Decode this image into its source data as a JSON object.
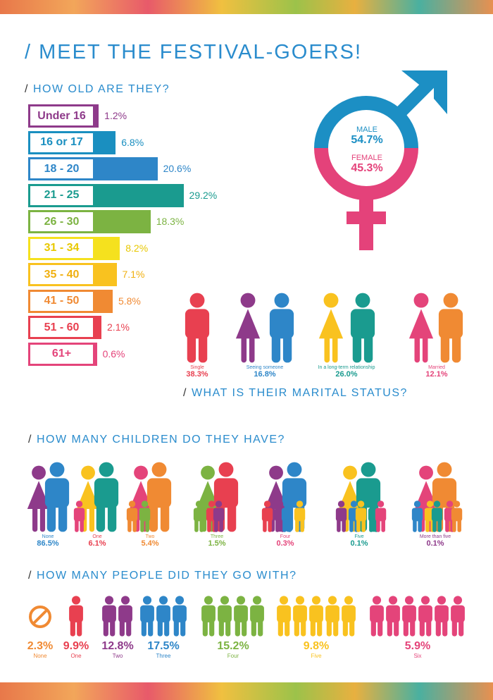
{
  "title": "/ MEET THE FESTIVAL-GOERS!",
  "sections": {
    "age": "HOW OLD ARE THEY?",
    "marital": "WHAT IS THEIR MARITAL STATUS?",
    "children": "HOW MANY CHILDREN DO THEY HAVE?",
    "companions": "HOW MANY PEOPLE DID THEY GO WITH?"
  },
  "slash": "/",
  "gender": {
    "male_label": "MALE",
    "male_value": "54.7%",
    "female_label": "FEMALE",
    "female_value": "45.3%",
    "male_color": "#1c8fc4",
    "female_color": "#e4427a"
  },
  "chart_data": {
    "type": "bar",
    "title": "HOW OLD ARE THEY?",
    "categories": [
      "Under 16",
      "16 or 17",
      "18 - 20",
      "21 - 25",
      "26 - 30",
      "31 - 34",
      "35 - 40",
      "41 - 50",
      "51 - 60",
      "61+"
    ],
    "values": [
      1.2,
      6.8,
      20.6,
      29.2,
      18.3,
      8.2,
      7.1,
      5.8,
      2.1,
      0.6
    ],
    "labels": [
      "1.2%",
      "6.8%",
      "20.6%",
      "29.2%",
      "18.3%",
      "8.2%",
      "7.1%",
      "5.8%",
      "2.1%",
      "0.6%"
    ],
    "colors": [
      "#8e3a8a",
      "#1a8fc0",
      "#2e86c8",
      "#1a9b8f",
      "#7cb342",
      "#f5e11e",
      "#f9c21f",
      "#f08a33",
      "#e84050",
      "#e4447a"
    ],
    "text_colors": [
      "#8e3a8a",
      "#1a8fc0",
      "#2e86c8",
      "#1a9b8f",
      "#7cb342",
      "#e8c800",
      "#f0b010",
      "#f08a33",
      "#e84050",
      "#e4447a"
    ]
  },
  "marital": [
    {
      "label": "Single",
      "value": "38.3%",
      "color": "#e84050"
    },
    {
      "label": "Seeing someone",
      "value": "16.8%",
      "color": "#2e86c8"
    },
    {
      "label": "In a long-term relationship",
      "value": "26.0%",
      "color": "#1a9b8f"
    },
    {
      "label": "Married",
      "value": "12.1%",
      "color": "#e4447a"
    }
  ],
  "children": [
    {
      "label": "None",
      "value": "86.5%",
      "color": "#2e86c8"
    },
    {
      "label": "One",
      "value": "6.1%",
      "color": "#e84050"
    },
    {
      "label": "Two",
      "value": "5.4%",
      "color": "#f08a33"
    },
    {
      "label": "Three",
      "value": "1.5%",
      "color": "#7cb342"
    },
    {
      "label": "Four",
      "value": "0.3%",
      "color": "#e4447a"
    },
    {
      "label": "Five",
      "value": "0.1%",
      "color": "#1a9b8f"
    },
    {
      "label": "More than five",
      "value": "0.1%",
      "color": "#8e3a8a"
    }
  ],
  "companions": [
    {
      "label": "None",
      "value": "2.3%",
      "color": "#f08a33"
    },
    {
      "label": "One",
      "value": "9.9%",
      "color": "#e84050"
    },
    {
      "label": "Two",
      "value": "12.8%",
      "color": "#8e3a8a"
    },
    {
      "label": "Three",
      "value": "17.5%",
      "color": "#2e86c8"
    },
    {
      "label": "Four",
      "value": "15.2%",
      "color": "#7cb342"
    },
    {
      "label": "Five",
      "value": "9.8%",
      "color": "#f9c21f"
    },
    {
      "label": "Six",
      "value": "5.9%",
      "color": "#e4447a"
    }
  ]
}
